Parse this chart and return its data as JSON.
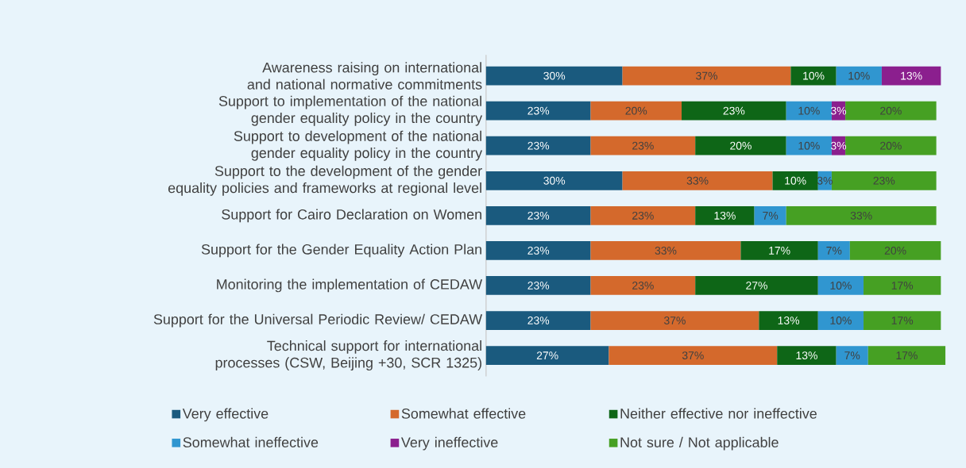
{
  "chart_data": {
    "type": "bar",
    "orientation": "horizontal",
    "stacked": true,
    "legend": "bottom",
    "categories": [
      "Awareness raising on international and national normative commitments",
      "Support to implementation of the national gender equality policy in the country",
      "Support to development of the national gender equality policy in the country",
      "Support to the development of the gender equality policies and frameworks at regional level",
      "Support for Cairo Declaration on Women",
      "Support for the Gender Equality Action Plan",
      "Monitoring the implementation of CEDAW",
      "Support for the Universal Periodic Review/ CEDAW",
      "Technical support for international processes (CSW, Beijing +30, SCR 1325)"
    ],
    "series": [
      {
        "name": "Very effective",
        "color": "#1a5a7e",
        "values": [
          30,
          23,
          23,
          30,
          23,
          23,
          23,
          23,
          27
        ],
        "value_labels": [
          "30%",
          "23%",
          "23%",
          "30%",
          "23%",
          "23%",
          "23%",
          "23%",
          "27%"
        ]
      },
      {
        "name": "Somewhat effective",
        "color": "#d4692c",
        "values": [
          37,
          20,
          23,
          33,
          23,
          33,
          23,
          37,
          37
        ],
        "value_labels": [
          "37%",
          "20%",
          "23%",
          "33%",
          "23%",
          "33%",
          "23%",
          "37%",
          "37%"
        ]
      },
      {
        "name": "Neither effective nor ineffective",
        "color": "#0e6617",
        "values": [
          10,
          23,
          20,
          10,
          13,
          17,
          27,
          13,
          13
        ],
        "value_labels": [
          "10%",
          "23%",
          "20%",
          "10%",
          "13%",
          "17%",
          "27%",
          "13%",
          "13%"
        ]
      },
      {
        "name": "Somewhat ineffective",
        "color": "#3096d0",
        "values": [
          10,
          10,
          10,
          3,
          7,
          7,
          10,
          10,
          7
        ],
        "value_labels": [
          "10%",
          "10%",
          "10%",
          "3%",
          "7%",
          "7%",
          "10%",
          "10%",
          "7%"
        ]
      },
      {
        "name": "Very ineffective",
        "color": "#8b1f8e",
        "values": [
          13,
          3,
          3,
          null,
          null,
          null,
          null,
          null,
          null
        ],
        "value_labels": [
          "13%",
          "3%",
          "3%",
          null,
          null,
          null,
          null,
          null,
          null
        ]
      },
      {
        "name": "Not sure / Not applicable",
        "color": "#46a023",
        "values": [
          null,
          20,
          20,
          23,
          33,
          20,
          17,
          17,
          17
        ],
        "value_labels": [
          null,
          "20%",
          "20%",
          "23%",
          "33%",
          "20%",
          "17%",
          "17%",
          "17%"
        ]
      }
    ]
  }
}
